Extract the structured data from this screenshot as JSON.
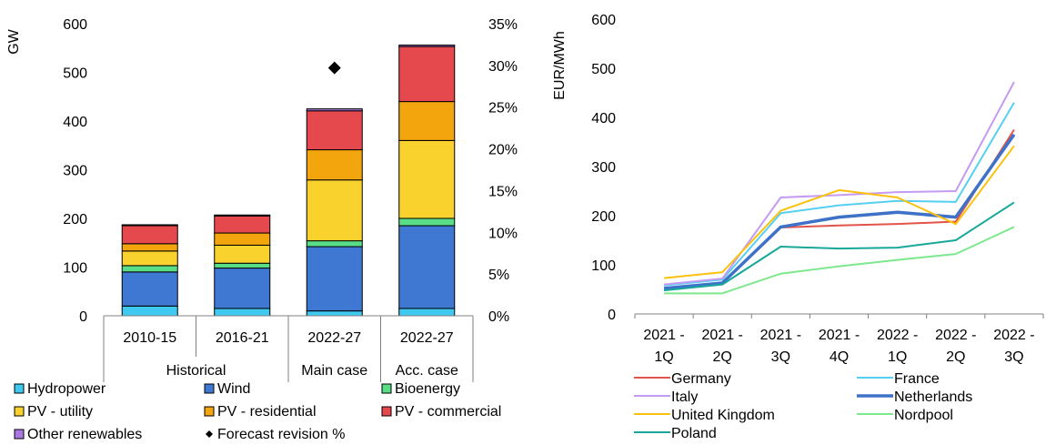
{
  "chart_data": [
    {
      "type": "bar",
      "stacked": true,
      "y_unit_label": "GW",
      "ylim": [
        0,
        600
      ],
      "yticks": [
        0,
        100,
        200,
        300,
        400,
        500,
        600
      ],
      "y2lim": [
        0,
        35
      ],
      "y2ticks": [
        "0%",
        "5%",
        "10%",
        "15%",
        "20%",
        "25%",
        "30%",
        "35%"
      ],
      "grid": false,
      "categories": [
        "2010-15",
        "2016-21",
        "2022-27",
        "2022-27"
      ],
      "groups": [
        {
          "label": "Historical",
          "span": 2
        },
        {
          "label": "Main case",
          "span": 1
        },
        {
          "label": "Acc. case",
          "span": 1
        }
      ],
      "series": [
        {
          "name": "Hydropower",
          "color": "#3fc8f0",
          "values": [
            20,
            15,
            10,
            15
          ]
        },
        {
          "name": "Wind",
          "color": "#3f78d2",
          "values": [
            70,
            83,
            132,
            170
          ]
        },
        {
          "name": "Bioenergy",
          "color": "#59de87",
          "values": [
            13,
            10,
            12,
            15
          ]
        },
        {
          "name": "PV - utility",
          "color": "#fad22d",
          "values": [
            30,
            37,
            125,
            160
          ]
        },
        {
          "name": "PV - residential",
          "color": "#f2a50d",
          "values": [
            15,
            25,
            62,
            80
          ]
        },
        {
          "name": "PV - commercial",
          "color": "#e5484d",
          "values": [
            37,
            35,
            80,
            113
          ]
        },
        {
          "name": "Other renewables",
          "color": "#a978e0",
          "values": [
            2,
            2,
            4,
            3
          ]
        }
      ],
      "markers": {
        "name": "Forecast revision %",
        "color": "#000000",
        "values": [
          null,
          null,
          29.7,
          null
        ]
      },
      "legend_position": "bottom"
    },
    {
      "type": "line",
      "ylabel": "EUR/MWh",
      "ylim": [
        0,
        600
      ],
      "yticks": [
        0,
        100,
        200,
        300,
        400,
        500,
        600
      ],
      "grid": false,
      "categories": [
        "2021 - 1Q",
        "2021 - 2Q",
        "2021 - 3Q",
        "2021 - 4Q",
        "2022 - 1Q",
        "2022 - 2Q",
        "2022 - 3Q"
      ],
      "category_lines": [
        [
          "2021 -",
          "1Q"
        ],
        [
          "2021 -",
          "2Q"
        ],
        [
          "2021 -",
          "3Q"
        ],
        [
          "2021 -",
          "4Q"
        ],
        [
          "2022 -",
          "1Q"
        ],
        [
          "2022 -",
          "2Q"
        ],
        [
          "2022 -",
          "3Q"
        ]
      ],
      "series": [
        {
          "name": "Germany",
          "color": "#e2534a",
          "values": [
            52,
            62,
            176,
            180,
            183,
            188,
            375
          ]
        },
        {
          "name": "France",
          "color": "#56cff2",
          "values": [
            58,
            70,
            205,
            221,
            230,
            228,
            430
          ]
        },
        {
          "name": "Italy",
          "color": "#c49af2",
          "values": [
            60,
            72,
            237,
            242,
            248,
            250,
            472
          ]
        },
        {
          "name": "Netherlands",
          "color": "#3e72c8",
          "values": [
            52,
            63,
            177,
            197,
            207,
            197,
            365
          ]
        },
        {
          "name": "United Kingdom",
          "color": "#fcc10f",
          "values": [
            73,
            85,
            210,
            252,
            237,
            183,
            342
          ]
        },
        {
          "name": "Nordpool",
          "color": "#7de88e",
          "values": [
            42,
            42,
            82,
            97,
            110,
            122,
            177
          ]
        },
        {
          "name": "Poland",
          "color": "#18a89a",
          "values": [
            48,
            60,
            137,
            133,
            135,
            150,
            227
          ]
        }
      ],
      "legend_position": "bottom"
    }
  ]
}
